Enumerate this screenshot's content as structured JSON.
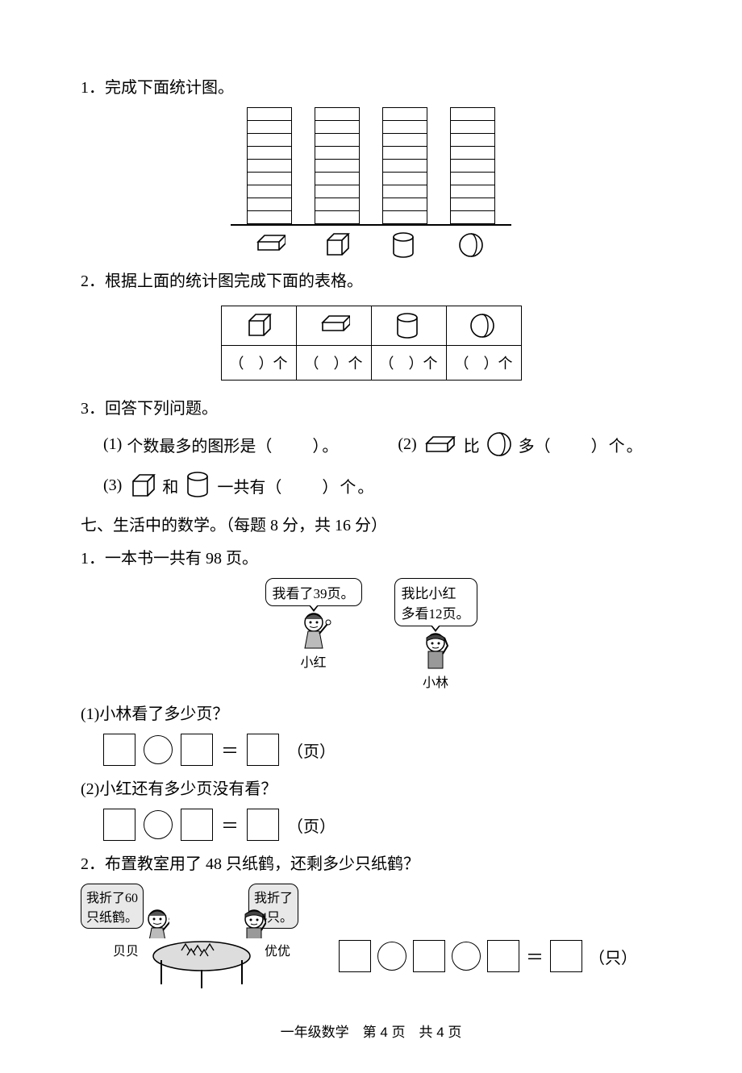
{
  "q1": {
    "num": "1．",
    "text": "完成下面统计图。"
  },
  "chart": {
    "cols": 4,
    "cells_per_col": 9,
    "icons": [
      "cuboid",
      "cube",
      "cylinder",
      "sphere"
    ]
  },
  "q2": {
    "num": "2．",
    "text": "根据上面的统计图完成下面的表格。"
  },
  "table": {
    "head_icons": [
      "cube",
      "cuboid",
      "cylinder",
      "sphere"
    ],
    "cell_l": "（",
    "cell_m": "　",
    "cell_r": "）个"
  },
  "q3": {
    "num": "3．",
    "text": "回答下列问题。"
  },
  "q3_1": {
    "label": "(1)",
    "t1": "个数最多的图形是（",
    "t2": "　　）。"
  },
  "q3_2": {
    "label": "(2)",
    "t1": "比",
    "t2": "多（",
    "t3": "　　）个。"
  },
  "q3_3": {
    "label": "(3)",
    "t1": "和",
    "t2": "一共有（",
    "t3": "　　）个。"
  },
  "sec7": {
    "title": "七、生活中的数学。（每题 8 分，共 16 分）"
  },
  "p1": {
    "num": "1．",
    "text": "一本书一共有 98 页。"
  },
  "p1_bubble_a": "我看了39页。",
  "p1_bubble_b1": "我比小红",
  "p1_bubble_b2": "多看12页。",
  "p1_name_a": "小红",
  "p1_name_b": "小林",
  "p1_q1": "(1)小林看了多少页？",
  "p1_q2": "(2)小红还有多少页没有看？",
  "eq_eq": "＝",
  "unit_page": "（页）",
  "p2": {
    "num": "2．",
    "text": "布置教室用了 48 只纸鹤，还剩多少只纸鹤？"
  },
  "p2_bubble_a1": "我折了60",
  "p2_bubble_a2": "只纸鹤。",
  "p2_bubble_b1": "我折了",
  "p2_bubble_b2": "24只。",
  "p2_name_a": "贝贝",
  "p2_name_b": "优优",
  "unit_zhi": "（只）",
  "footer": "一年级数学　第 4 页　共 4 页"
}
